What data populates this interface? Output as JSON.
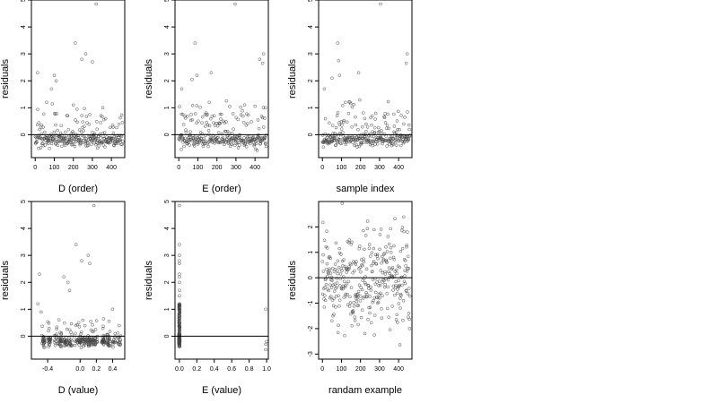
{
  "chart_data": [
    {
      "type": "scatter",
      "xlabel": "D (order)",
      "ylabel": "residuals",
      "xlim": [
        -20,
        470
      ],
      "ylim": [
        -0.85,
        5.0
      ],
      "xticks": [
        0,
        100,
        200,
        300,
        400
      ],
      "xtick_labels": [
        "0",
        "100",
        "200",
        "300",
        "400"
      ],
      "yticks": [
        0,
        1,
        2,
        3,
        4,
        5
      ],
      "ytick_labels": [
        "0",
        "1",
        "2",
        "3",
        "4",
        "5"
      ],
      "hline": 0,
      "gen": "order_spikes_a",
      "points": [
        [
          12,
          2.3
        ],
        [
          85,
          1.7
        ],
        [
          100,
          2.2
        ],
        [
          110,
          2.0
        ],
        [
          210,
          3.4
        ],
        [
          245,
          2.8
        ],
        [
          265,
          3.0
        ],
        [
          300,
          2.7
        ],
        [
          320,
          4.85
        ],
        [
          60,
          1.2
        ],
        [
          200,
          1.1
        ],
        [
          355,
          1.0
        ]
      ]
    },
    {
      "type": "scatter",
      "xlabel": "E (order)",
      "ylabel": "residuals",
      "xlim": [
        -20,
        470
      ],
      "ylim": [
        -0.85,
        5.0
      ],
      "xticks": [
        0,
        100,
        200,
        300,
        400
      ],
      "xtick_labels": [
        "0",
        "100",
        "200",
        "300",
        "400"
      ],
      "yticks": [
        0,
        1,
        2,
        3,
        4,
        5
      ],
      "ytick_labels": [
        "0",
        "1",
        "2",
        "3",
        "4",
        "5"
      ],
      "hline": 0,
      "gen": "order_spikes_b",
      "points": [
        [
          15,
          1.7
        ],
        [
          70,
          2.05
        ],
        [
          85,
          3.4
        ],
        [
          95,
          2.2
        ],
        [
          170,
          2.3
        ],
        [
          295,
          4.85
        ],
        [
          425,
          2.8
        ],
        [
          445,
          3.0
        ],
        [
          440,
          2.65
        ],
        [
          455,
          1.0
        ],
        [
          160,
          1.2
        ]
      ]
    },
    {
      "type": "scatter",
      "xlabel": "sample index",
      "ylabel": "residuals",
      "xlim": [
        -20,
        470
      ],
      "ylim": [
        -0.85,
        5.0
      ],
      "xticks": [
        0,
        100,
        200,
        300,
        400
      ],
      "xtick_labels": [
        "0",
        "100",
        "200",
        "300",
        "400"
      ],
      "yticks": [
        0,
        1,
        2,
        3,
        4,
        5
      ],
      "ytick_labels": [
        "0",
        "1",
        "2",
        "3",
        "4",
        "5"
      ],
      "hline": 0,
      "gen": "order_spikes_c",
      "points": [
        [
          10,
          1.7
        ],
        [
          50,
          2.1
        ],
        [
          80,
          3.4
        ],
        [
          90,
          2.2
        ],
        [
          85,
          2.75
        ],
        [
          190,
          2.3
        ],
        [
          305,
          4.85
        ],
        [
          440,
          2.65
        ],
        [
          445,
          3.0
        ],
        [
          120,
          1.2
        ]
      ]
    },
    {
      "type": "scatter",
      "xlabel": "D (value)",
      "ylabel": "residuals",
      "xlim": [
        -0.6,
        0.55
      ],
      "ylim": [
        -0.85,
        5.0
      ],
      "xticks": [
        -0.4,
        0.0,
        0.2,
        0.4
      ],
      "xtick_labels": [
        "-0.4",
        "0.0",
        "0.2",
        "0.4"
      ],
      "yticks": [
        0,
        1,
        2,
        3,
        4,
        5
      ],
      "ytick_labels": [
        "0",
        "1",
        "2",
        "3",
        "4",
        "5"
      ],
      "hline": 0,
      "gen": "value_d",
      "points": [
        [
          -0.5,
          2.3
        ],
        [
          -0.52,
          1.2
        ],
        [
          -0.2,
          2.2
        ],
        [
          -0.15,
          2.0
        ],
        [
          -0.13,
          1.7
        ],
        [
          -0.05,
          3.4
        ],
        [
          0.02,
          2.8
        ],
        [
          0.1,
          3.0
        ],
        [
          0.12,
          2.7
        ],
        [
          0.17,
          4.85
        ],
        [
          -0.48,
          0.9
        ],
        [
          0.4,
          1.0
        ]
      ]
    },
    {
      "type": "scatter",
      "xlabel": "E (value)",
      "ylabel": "residuals",
      "xlim": [
        -0.05,
        1.02
      ],
      "ylim": [
        -0.85,
        5.0
      ],
      "xticks": [
        0.0,
        0.2,
        0.4,
        0.6,
        0.8,
        1.0
      ],
      "xtick_labels": [
        "0.0",
        "0.2",
        "0.4",
        "0.6",
        "0.8",
        "1.0"
      ],
      "yticks": [
        0,
        1,
        2,
        3,
        4,
        5
      ],
      "ytick_labels": [
        "0",
        "1",
        "2",
        "3",
        "4",
        "5"
      ],
      "hline": 0,
      "gen": "value_e",
      "points": [
        [
          0.0,
          4.85
        ],
        [
          0.0,
          3.4
        ],
        [
          0.0,
          3.0
        ],
        [
          0.0,
          2.8
        ],
        [
          0.0,
          2.7
        ],
        [
          0.0,
          2.3
        ],
        [
          0.0,
          2.2
        ],
        [
          0.0,
          2.0
        ],
        [
          0.0,
          1.7
        ],
        [
          0.0,
          1.5
        ],
        [
          0.0,
          1.2
        ],
        [
          0.99,
          1.0
        ],
        [
          0.99,
          -0.5
        ],
        [
          1.0,
          -0.2
        ],
        [
          0.99,
          -0.3
        ]
      ]
    },
    {
      "type": "scatter",
      "xlabel": "randam example",
      "ylabel": "residuals",
      "xlim": [
        -20,
        470
      ],
      "ylim": [
        -3.2,
        3.0
      ],
      "xticks": [
        0,
        100,
        200,
        300,
        400
      ],
      "xtick_labels": [
        "0",
        "100",
        "200",
        "300",
        "400"
      ],
      "yticks": [
        -3,
        -2,
        -1,
        0,
        1,
        2
      ],
      "ytick_labels": [
        "-3",
        "-2",
        "-1",
        "0",
        "1",
        "2"
      ],
      "hline": 0,
      "gen": "normal",
      "points": []
    }
  ]
}
